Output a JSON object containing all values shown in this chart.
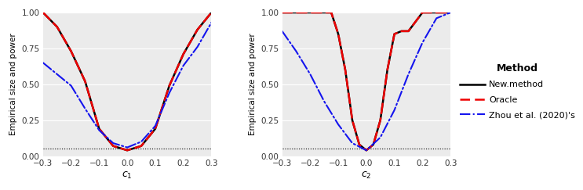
{
  "plot1": {
    "xlabel": "c[1]",
    "ylabel": "Empirical size and power",
    "xlim": [
      -0.3,
      0.3
    ],
    "ylim": [
      0.0,
      1.0
    ],
    "xticks": [
      -0.3,
      -0.2,
      -0.1,
      0.0,
      0.1,
      0.2,
      0.3
    ],
    "yticks": [
      0.0,
      0.25,
      0.5,
      0.75,
      1.0
    ],
    "hline": 0.05,
    "new_method_x": [
      -0.3,
      -0.25,
      -0.2,
      -0.15,
      -0.1,
      -0.05,
      0.0,
      0.05,
      0.1,
      0.15,
      0.2,
      0.25,
      0.3
    ],
    "new_method_y": [
      1.0,
      0.9,
      0.73,
      0.52,
      0.19,
      0.07,
      0.04,
      0.07,
      0.19,
      0.49,
      0.71,
      0.88,
      1.0
    ],
    "oracle_x": [
      -0.3,
      -0.25,
      -0.2,
      -0.15,
      -0.1,
      -0.05,
      0.0,
      0.05,
      0.1,
      0.15,
      0.2,
      0.25,
      0.3
    ],
    "oracle_y": [
      1.0,
      0.9,
      0.73,
      0.52,
      0.19,
      0.07,
      0.04,
      0.07,
      0.19,
      0.49,
      0.71,
      0.88,
      1.0
    ],
    "zhou_x": [
      -0.3,
      -0.25,
      -0.2,
      -0.15,
      -0.1,
      -0.05,
      0.0,
      0.05,
      0.1,
      0.15,
      0.2,
      0.25,
      0.3
    ],
    "zhou_y": [
      0.65,
      0.57,
      0.49,
      0.33,
      0.18,
      0.09,
      0.06,
      0.1,
      0.21,
      0.44,
      0.63,
      0.76,
      0.93
    ]
  },
  "plot2": {
    "xlabel": "c[2]",
    "ylabel": "Empirical size and power",
    "xlim": [
      -0.3,
      0.3
    ],
    "ylim": [
      0.0,
      1.0
    ],
    "xticks": [
      -0.3,
      -0.2,
      -0.1,
      0.0,
      0.1,
      0.2,
      0.3
    ],
    "yticks": [
      0.0,
      0.25,
      0.5,
      0.75,
      1.0
    ],
    "hline": 0.05,
    "new_method_x": [
      -0.3,
      -0.25,
      -0.2,
      -0.15,
      -0.125,
      -0.1,
      -0.075,
      -0.05,
      -0.025,
      0.0,
      0.025,
      0.05,
      0.075,
      0.1,
      0.125,
      0.15,
      0.2,
      0.25,
      0.3
    ],
    "new_method_y": [
      1.0,
      1.0,
      1.0,
      1.0,
      1.0,
      0.85,
      0.6,
      0.25,
      0.08,
      0.04,
      0.08,
      0.25,
      0.6,
      0.85,
      0.87,
      0.87,
      1.0,
      1.0,
      1.0
    ],
    "oracle_x": [
      -0.3,
      -0.25,
      -0.2,
      -0.15,
      -0.125,
      -0.1,
      -0.075,
      -0.05,
      -0.025,
      0.0,
      0.025,
      0.05,
      0.075,
      0.1,
      0.125,
      0.15,
      0.2,
      0.25,
      0.3
    ],
    "oracle_y": [
      1.0,
      1.0,
      1.0,
      1.0,
      1.0,
      0.85,
      0.6,
      0.25,
      0.08,
      0.04,
      0.08,
      0.25,
      0.6,
      0.85,
      0.87,
      0.87,
      1.0,
      1.0,
      1.0
    ],
    "zhou_x": [
      -0.3,
      -0.25,
      -0.2,
      -0.15,
      -0.1,
      -0.05,
      0.0,
      0.05,
      0.1,
      0.15,
      0.2,
      0.25,
      0.3
    ],
    "zhou_y": [
      0.87,
      0.73,
      0.57,
      0.38,
      0.22,
      0.09,
      0.04,
      0.13,
      0.32,
      0.57,
      0.79,
      0.96,
      1.0
    ]
  },
  "legend_title": "Method",
  "new_method_label": "New.method",
  "oracle_label": "Oracle",
  "zhou_label": "Zhou et al. (2020)'s",
  "color_black": "#000000",
  "color_red": "#EE0000",
  "color_blue": "#1414EE"
}
